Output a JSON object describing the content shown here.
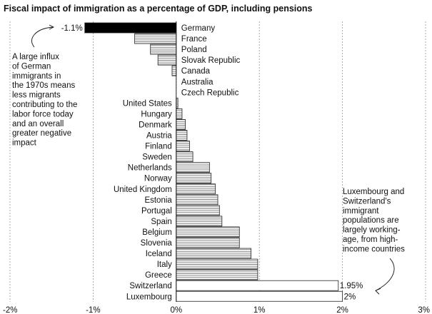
{
  "chart_data": {
    "type": "bar",
    "orientation": "horizontal",
    "title": "Fiscal impact of immigration as a percentage of GDP, including pensions",
    "categories": [
      "Germany",
      "France",
      "Poland",
      "Slovak Republic",
      "Canada",
      "Australia",
      "Czech Republic",
      "United States",
      "Hungary",
      "Denmark",
      "Austria",
      "Finland",
      "Sweden",
      "Netherlands",
      "Norway",
      "United Kingdom",
      "Estonia",
      "Portugal",
      "Spain",
      "Belgium",
      "Slovenia",
      "Iceland",
      "Italy",
      "Greece",
      "Switzerland",
      "Luxembourg"
    ],
    "values": [
      -1.1,
      -0.5,
      -0.31,
      -0.22,
      -0.05,
      0.0,
      0.0,
      0.02,
      0.07,
      0.11,
      0.13,
      0.16,
      0.2,
      0.4,
      0.42,
      0.47,
      0.5,
      0.52,
      0.55,
      0.76,
      0.76,
      0.9,
      0.98,
      0.98,
      1.95,
      2.0
    ],
    "value_labels": [
      {
        "index": 0,
        "text": "-1.1%"
      },
      {
        "index": 24,
        "text": "1.95%"
      },
      {
        "index": 25,
        "text": "2%"
      }
    ],
    "xlim": [
      -2,
      3
    ],
    "xticks": [
      {
        "value": -2,
        "label": "-2%"
      },
      {
        "value": -1,
        "label": "-1%"
      },
      {
        "value": 0,
        "label": "0%"
      },
      {
        "value": 1,
        "label": "1%"
      },
      {
        "value": 2,
        "label": "2%"
      },
      {
        "value": 3,
        "label": "3%"
      }
    ],
    "grid": true,
    "xlabel": "",
    "ylabel": "",
    "highlight": {
      "Germany": "#000000",
      "Switzerland": "#ffffff",
      "Luxembourg": "#ffffff"
    },
    "bar_fill": "hatched-grey",
    "annotations": [
      {
        "side": "left",
        "lines": [
          "A large influx",
          "of German",
          "immigrants in",
          "the 1970s means",
          "less migrants",
          "contributing to the",
          "labor force today",
          "and an overall",
          "greater negative",
          "impact"
        ],
        "points_to": "Germany"
      },
      {
        "side": "right",
        "lines": [
          "Luxembourg and",
          "Switzerland's",
          "immigrant",
          "populations are",
          "largely working-",
          "age, from high-",
          "income countries"
        ],
        "points_to": "Luxembourg"
      }
    ]
  }
}
